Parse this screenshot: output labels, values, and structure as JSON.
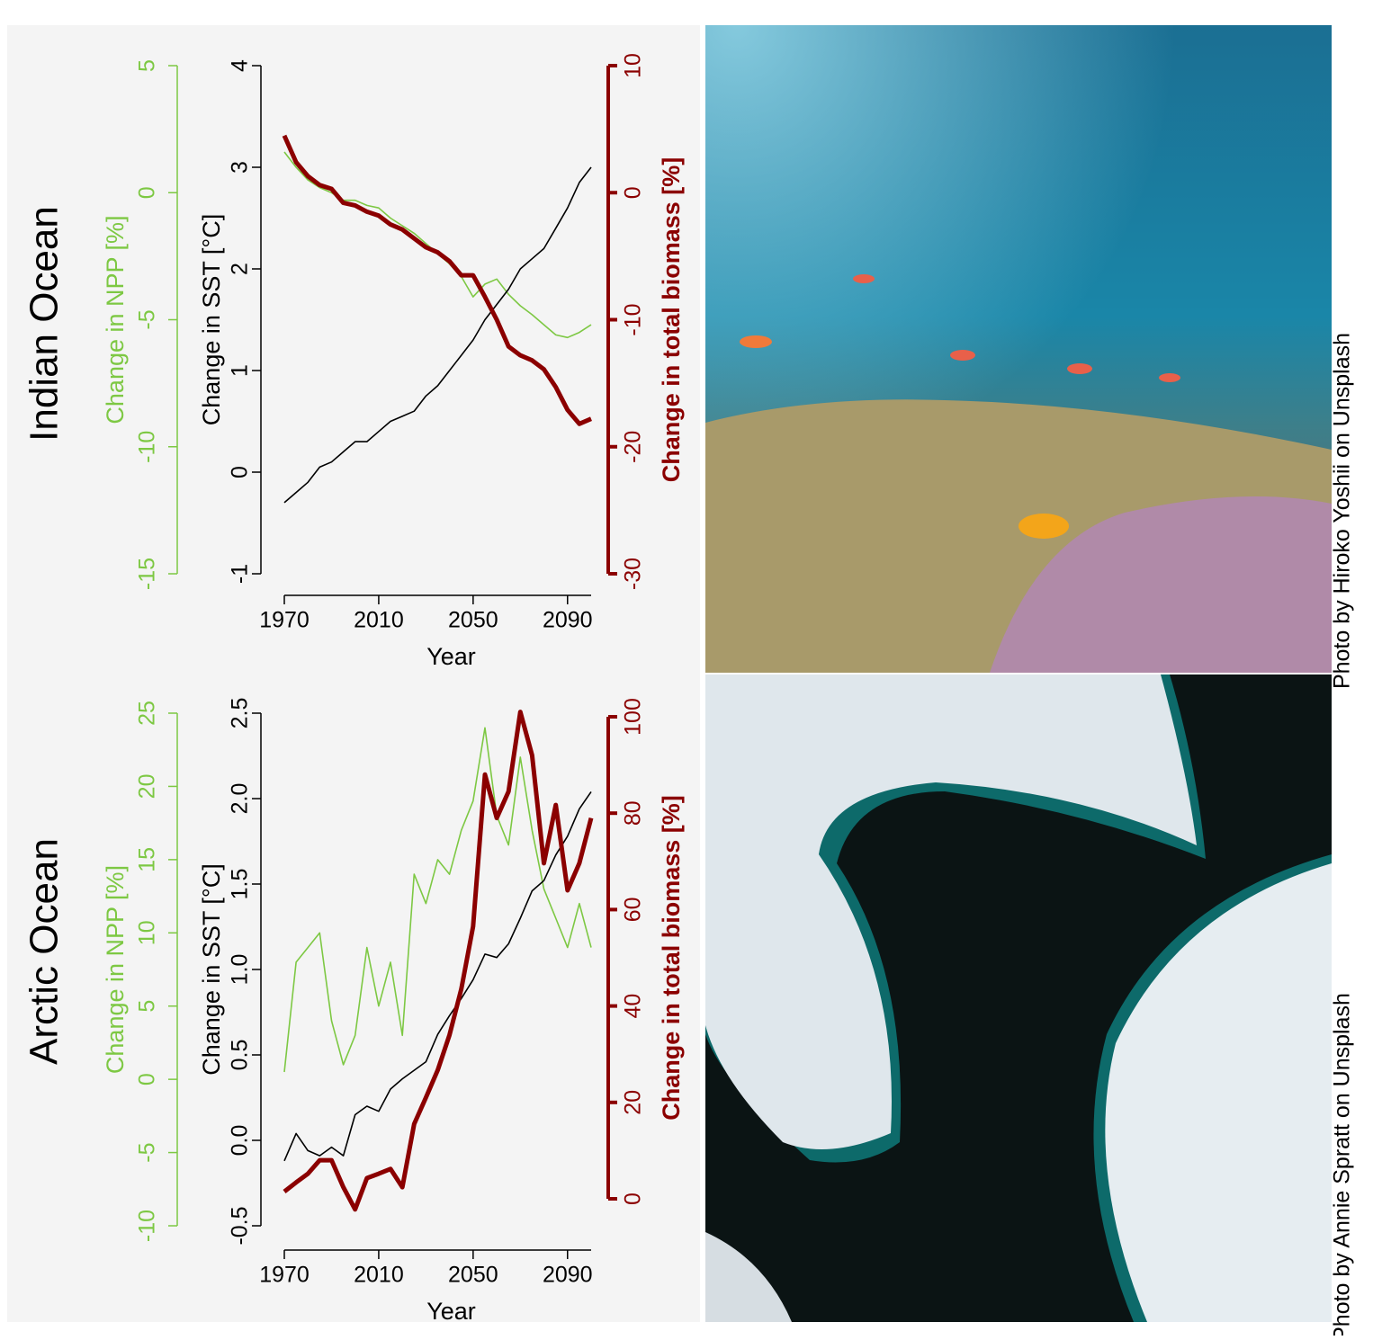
{
  "chart_data": [
    {
      "type": "line",
      "title": "Indian Ocean",
      "x": [
        1970,
        1975,
        1980,
        1985,
        1990,
        1995,
        2000,
        2005,
        2010,
        2015,
        2020,
        2025,
        2030,
        2035,
        2040,
        2045,
        2050,
        2055,
        2060,
        2065,
        2070,
        2075,
        2080,
        2085,
        2090,
        2095,
        2100
      ],
      "xlim": [
        1970,
        2100
      ],
      "xticks": [
        1970,
        2010,
        2050,
        2090
      ],
      "xlabel": "Year",
      "ylabel": "Change in SST [°C]",
      "ylim": [
        -1,
        4
      ],
      "yticks": [
        -1,
        0,
        1,
        2,
        3,
        4
      ],
      "y2label": "Change in total biomass [%]",
      "y2lim": [
        -30,
        10
      ],
      "y2ticks": [
        -30,
        -20,
        -10,
        0,
        10
      ],
      "y3label": "Change in NPP [%]",
      "y3lim": [
        -15,
        5
      ],
      "y3ticks": [
        -15,
        -10,
        -5,
        0,
        5
      ],
      "series": [
        {
          "axis": "y3",
          "color": "#7dc843",
          "values": [
            1.6,
            1.0,
            0.5,
            0.2,
            0,
            -0.3,
            -0.3,
            -0.5,
            -0.6,
            -1.0,
            -1.3,
            -1.6,
            -2.0,
            -2.4,
            -2.8,
            -3.3,
            -4.1,
            -3.6,
            -3.4,
            -4.0,
            -4.45,
            -4.8,
            -5.2,
            -5.6,
            -5.7,
            -5.5,
            -5.2
          ]
        },
        {
          "axis": "y",
          "color": "#000000",
          "values": [
            -0.3,
            -0.2,
            -0.1,
            0.05,
            0.1,
            0.2,
            0.3,
            0.3,
            0.4,
            0.5,
            0.55,
            0.6,
            0.75,
            0.85,
            1.0,
            1.15,
            1.3,
            1.5,
            1.65,
            1.8,
            2.0,
            2.1,
            2.2,
            2.4,
            2.6,
            2.85,
            3.0
          ]
        },
        {
          "axis": "y2",
          "color": "#8b0000",
          "values": [
            4.5,
            2.4,
            1.3,
            0.6,
            0.3,
            -0.8,
            -1,
            -1.5,
            -1.8,
            -2.5,
            -2.9,
            -3.6,
            -4.3,
            -4.7,
            -5.4,
            -6.5,
            -6.5,
            -8.2,
            -10,
            -12.1,
            -12.8,
            -13.2,
            -13.9,
            -15.3,
            -17.1,
            -18.2,
            -17.8
          ]
        }
      ]
    },
    {
      "type": "line",
      "title": "Arctic Ocean",
      "x": [
        1970,
        1975,
        1980,
        1985,
        1990,
        1995,
        2000,
        2005,
        2010,
        2015,
        2020,
        2025,
        2030,
        2035,
        2040,
        2045,
        2050,
        2055,
        2060,
        2065,
        2070,
        2075,
        2080,
        2085,
        2090,
        2095,
        2100
      ],
      "xlim": [
        1970,
        2100
      ],
      "xticks": [
        1970,
        2010,
        2050,
        2090
      ],
      "xlabel": "Year",
      "ylabel": "Change in SST [°C]",
      "ylim": [
        -0.5,
        2.5
      ],
      "yticks": [
        -0.5,
        {
          "value": 0,
          "label": "0.0"
        },
        0.5,
        {
          "value": 1,
          "label": "1.0"
        },
        1.5,
        {
          "value": 2,
          "label": "2.0"
        },
        2.5
      ],
      "y2label": "Change in total biomass [%]",
      "y2lim": [
        0,
        100
      ],
      "y2ticks": [
        0,
        20,
        40,
        60,
        80,
        100
      ],
      "y3label": "Change in NPP [%]",
      "y3lim": [
        -10,
        25
      ],
      "y3ticks": [
        -10,
        -5,
        0,
        5,
        10,
        15,
        20,
        25
      ],
      "series": [
        {
          "axis": "y3",
          "color": "#7dc843",
          "values": [
            0.5,
            8,
            9,
            10,
            4,
            1,
            3,
            9,
            5,
            8,
            3,
            14,
            12,
            15,
            14,
            17,
            19,
            24,
            18,
            16,
            22,
            17,
            13,
            11,
            9,
            12,
            9
          ]
        },
        {
          "axis": "y",
          "color": "#000000",
          "values": [
            -0.12,
            0.04,
            -0.06,
            -0.09,
            -0.04,
            -0.09,
            0.15,
            0.2,
            0.17,
            0.3,
            0.36,
            0.41,
            0.46,
            0.62,
            0.73,
            0.83,
            0.94,
            1.09,
            1.07,
            1.15,
            1.3,
            1.46,
            1.52,
            1.67,
            1.78,
            1.94,
            2.04
          ]
        },
        {
          "axis": "y2",
          "color": "#8b0000",
          "values": [
            1.5,
            3.4,
            5.2,
            8,
            8,
            2.4,
            -2.2,
            4.3,
            5.2,
            6.2,
            2.4,
            15.5,
            21,
            26.7,
            34,
            43.5,
            56.5,
            88,
            79,
            84.5,
            101,
            92,
            69.6,
            81.7,
            64,
            69.6,
            79
          ]
        }
      ]
    }
  ],
  "photos": [
    {
      "credit": "Photo by Hiroko Yoshii on Unsplash"
    },
    {
      "credit": "Photo by Annie Spratt on Unsplash"
    }
  ]
}
